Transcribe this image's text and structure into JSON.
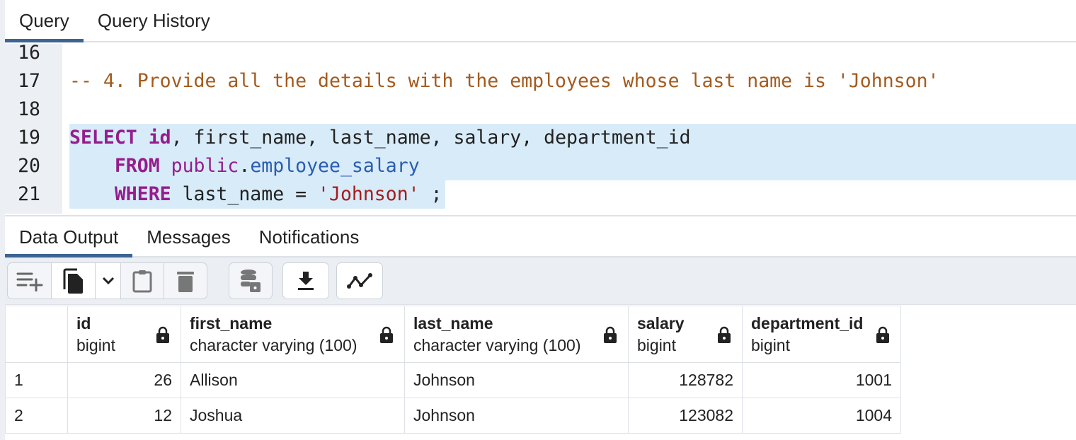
{
  "query_tabs": [
    {
      "label": "Query",
      "active": true
    },
    {
      "label": "Query History",
      "active": false
    }
  ],
  "editor": {
    "lines": [
      {
        "n": "16"
      },
      {
        "n": "17",
        "comment": "-- 4. Provide all the details with the employees whose last name is 'Johnson'"
      },
      {
        "n": "18"
      },
      {
        "n": "19",
        "kw": "SELECT",
        "id": "id",
        "rest": ", first_name, last_name, salary, department_id"
      },
      {
        "n": "20",
        "indent": "    ",
        "kw": "FROM",
        "schema": "public",
        "dot": ".",
        "table": "employee_salary"
      },
      {
        "n": "21",
        "indent": "    ",
        "kw": "WHERE",
        "rest": " last_name = ",
        "str": "'Johnson'",
        "end": " ;"
      }
    ]
  },
  "output_tabs": [
    {
      "label": "Data Output",
      "active": true
    },
    {
      "label": "Messages",
      "active": false
    },
    {
      "label": "Notifications",
      "active": false
    }
  ],
  "toolbar": [
    "add-row-icon",
    "copy-icon",
    "chevron-down-icon",
    "paste-icon",
    "delete-icon",
    "save-data-icon",
    "download-icon",
    "graph-icon"
  ],
  "grid": {
    "columns": [
      {
        "name": "id",
        "type": "bigint"
      },
      {
        "name": "first_name",
        "type": "character varying (100)"
      },
      {
        "name": "last_name",
        "type": "character varying (100)"
      },
      {
        "name": "salary",
        "type": "bigint"
      },
      {
        "name": "department_id",
        "type": "bigint"
      }
    ],
    "rows": [
      {
        "n": "1",
        "cells": [
          "26",
          "Allison",
          "Johnson",
          "128782",
          "1001"
        ]
      },
      {
        "n": "2",
        "cells": [
          "12",
          "Joshua",
          "Johnson",
          "123082",
          "1004"
        ]
      }
    ]
  }
}
